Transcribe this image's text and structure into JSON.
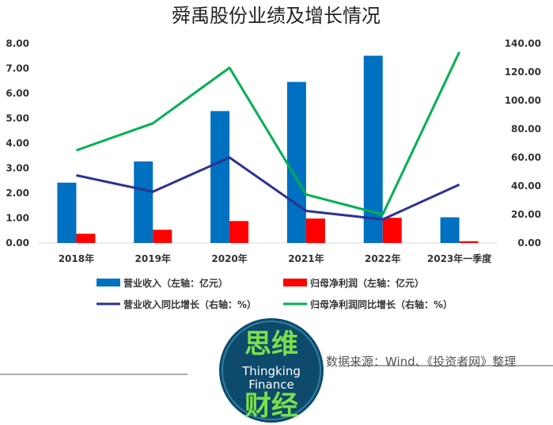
{
  "chart_data": {
    "type": "bar+line",
    "title": "舜禹股份业绩及增长情况",
    "categories": [
      "2018年",
      "2019年",
      "2020年",
      "2021年",
      "2022年",
      "2023年一季度"
    ],
    "left_axis": {
      "min": 0,
      "max": 8,
      "ticks": [
        "0.00",
        "1.00",
        "2.00",
        "3.00",
        "4.00",
        "5.00",
        "6.00",
        "7.00",
        "8.00"
      ]
    },
    "right_axis": {
      "min": 0,
      "max": 140,
      "ticks": [
        "0.00",
        "20.00",
        "40.00",
        "60.00",
        "80.00",
        "100.00",
        "120.00",
        "140.00"
      ]
    },
    "bars": [
      {
        "name": "营业收入（左轴：亿元）",
        "color": "#0070c0",
        "values": [
          2.42,
          3.27,
          5.29,
          6.46,
          7.51,
          1.03
        ]
      },
      {
        "name": "归母净利润（左轴：亿元）",
        "color": "#ff0000",
        "values": [
          0.37,
          0.53,
          0.88,
          0.98,
          1.01,
          0.07
        ]
      }
    ],
    "lines": [
      {
        "name": "营业收入同比增长（右轴：%）",
        "color": "#2e3192",
        "values": [
          47.5,
          36.0,
          60.0,
          22.5,
          16.5,
          41.0
        ]
      },
      {
        "name": "归母净利润同比增长（右轴：%）",
        "color": "#00b050",
        "values": [
          65.0,
          84.0,
          123.0,
          34.0,
          20.0,
          134.0
        ]
      }
    ],
    "grid": false,
    "legend": "bottom"
  },
  "source_text": "数据来源：Wind、《投资者网》整理",
  "logo": {
    "top": "思维",
    "line1": "Thingking",
    "line2": "Finance",
    "bottom": "财经"
  },
  "colors": {
    "bar1": "#0070c0",
    "bar2": "#ff0000",
    "line1": "#2e3192",
    "line2": "#00b050",
    "logo_bg": "#0d4a6b"
  }
}
